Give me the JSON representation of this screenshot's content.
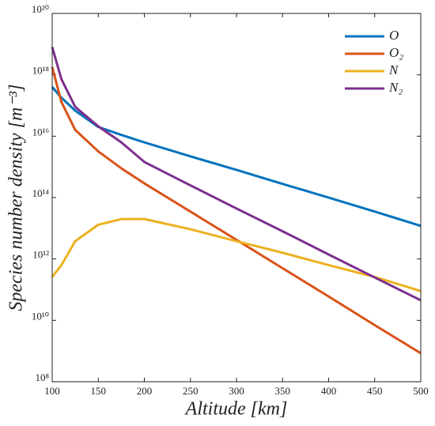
{
  "chart_data": {
    "type": "line",
    "xlabel": "Altitude [km]",
    "ylabel": "Species number density [m⁻³]",
    "x": [
      100,
      110,
      125,
      150,
      175,
      200,
      250,
      300,
      350,
      400,
      450,
      500
    ],
    "series": [
      {
        "name": "O",
        "color": "#0072BD",
        "values": [
          4e+17,
          1.8e+17,
          6.8e+16,
          2e+16,
          1.1e+16,
          6300000000000000.0,
          2200000000000000.0,
          800000000000000.0,
          280000000000000.0,
          100000000000000.0,
          35000000000000.0,
          12000000000000.0
        ]
      },
      {
        "name": "O₂",
        "color": "#D95319",
        "values": [
          1.8e+18,
          1.3e+17,
          1.6e+16,
          3200000000000000.0,
          900000000000000.0,
          290000000000000.0,
          35000000000000.0,
          4200000000000.0,
          500000000000.0,
          60000000000.0,
          7000000000.0,
          850000000.0
        ]
      },
      {
        "name": "N",
        "color": "#EDB120",
        "values": [
          260000000000.0,
          630000000000.0,
          3800000000000.0,
          13000000000000.0,
          20000000000000.0,
          20000000000000.0,
          9300000000000.0,
          3800000000000.0,
          1600000000000.0,
          630000000000.0,
          260000000000.0,
          90000000000.0
        ]
      },
      {
        "name": "N₂",
        "color": "#7E2F8E",
        "values": [
          8e+18,
          7.2e+17,
          9e+16,
          2.1e+16,
          6300000000000000.0,
          1450000000000000.0,
          250000000000000.0,
          44000000000000.0,
          8000000000000.0,
          1400000000000.0,
          250000000000.0,
          45000000000.0
        ]
      }
    ],
    "xlim": [
      100,
      500
    ],
    "xticks": [
      100,
      150,
      200,
      250,
      300,
      350,
      400,
      450,
      500
    ],
    "ylim": [
      100000000.0,
      1e+20
    ],
    "yticks": [
      {
        "value": 100000000.0,
        "label": "10⁸"
      },
      {
        "value": 10000000000.0,
        "label": "10¹⁰"
      },
      {
        "value": 1000000000000.0,
        "label": "10¹²"
      },
      {
        "value": 100000000000000.0,
        "label": "10¹⁴"
      },
      {
        "value": 1e+16,
        "label": "10¹⁶"
      },
      {
        "value": 1e+18,
        "label": "10¹⁸"
      },
      {
        "value": 1e+20,
        "label": "10²⁰"
      }
    ],
    "ylog": true,
    "legend": "top-right"
  }
}
